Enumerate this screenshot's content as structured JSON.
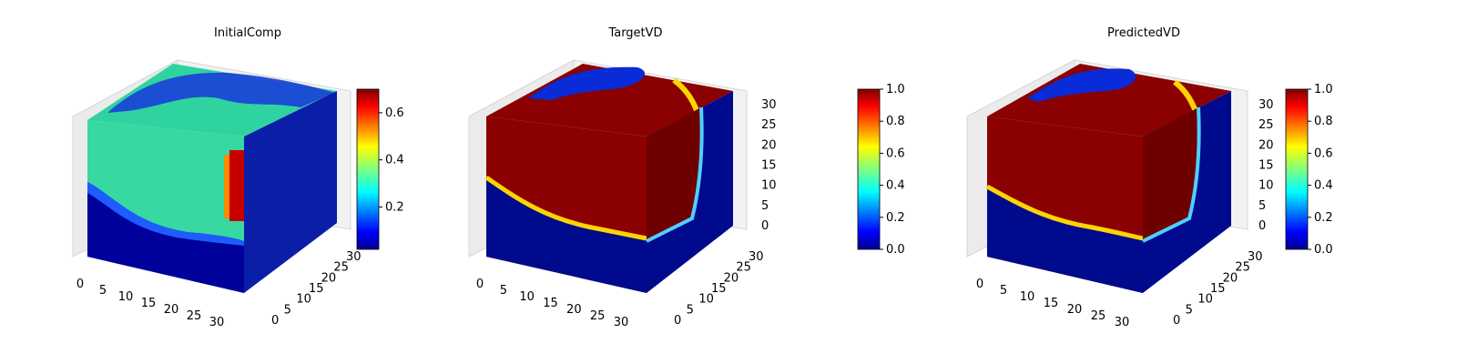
{
  "chart_data": [
    {
      "type": "voxel-3d",
      "title": "InitialComp",
      "x_ticks": [
        "0",
        "5",
        "10",
        "15",
        "20",
        "25",
        "30"
      ],
      "y_ticks": [
        "0",
        "5",
        "10",
        "15",
        "20",
        "25",
        "30"
      ],
      "z_ticks": [],
      "grid_size": 32,
      "colormap": "jet",
      "colorbar": {
        "vmin": 0.02,
        "vmax": 0.7,
        "ticks": [
          "0.2",
          "0.4",
          "0.6"
        ]
      },
      "field": {
        "top_level": 0.3,
        "side_level": 0.35,
        "bottom_level": 0.0,
        "hot_band_level": 0.7
      }
    },
    {
      "type": "voxel-3d",
      "title": "TargetVD",
      "x_ticks": [
        "0",
        "5",
        "10",
        "15",
        "20",
        "25",
        "30"
      ],
      "y_ticks": [
        "0",
        "5",
        "10",
        "15",
        "20",
        "25",
        "30"
      ],
      "z_ticks": [
        "0",
        "5",
        "10",
        "15",
        "20",
        "25",
        "30"
      ],
      "grid_size": 32,
      "colormap": "jet",
      "colorbar": {
        "vmin": 0.0,
        "vmax": 1.0,
        "ticks": [
          "0.0",
          "0.2",
          "0.4",
          "0.6",
          "0.8",
          "1.0"
        ]
      },
      "field": {
        "top_level": 1.0,
        "bottom_level": 0.0
      }
    },
    {
      "type": "voxel-3d",
      "title": "PredictedVD",
      "x_ticks": [
        "0",
        "5",
        "10",
        "15",
        "20",
        "25",
        "30"
      ],
      "y_ticks": [
        "0",
        "5",
        "10",
        "15",
        "20",
        "25",
        "30"
      ],
      "z_ticks": [
        "0",
        "5",
        "10",
        "15",
        "20",
        "25",
        "30"
      ],
      "grid_size": 32,
      "colormap": "jet",
      "colorbar": {
        "vmin": 0.0,
        "vmax": 1.0,
        "ticks": [
          "0.0",
          "0.2",
          "0.4",
          "0.6",
          "0.8",
          "1.0"
        ]
      },
      "field": {
        "top_level": 1.0,
        "bottom_level": 0.0
      }
    }
  ]
}
